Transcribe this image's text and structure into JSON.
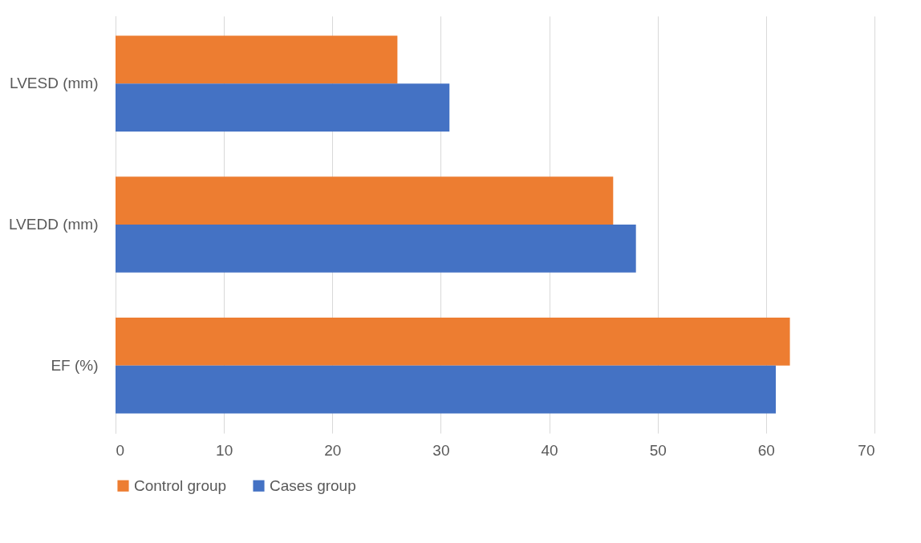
{
  "chart_data": {
    "type": "bar",
    "orientation": "horizontal",
    "categories": [
      "LVESD (mm)",
      "LVEDD (mm)",
      "EF (%)"
    ],
    "series": [
      {
        "name": "Control group",
        "color": "#ed7d31",
        "values": [
          26.0,
          45.9,
          62.2
        ]
      },
      {
        "name": "Cases group",
        "color": "#4472c4",
        "values": [
          30.8,
          48.0,
          60.9
        ]
      }
    ],
    "xlim": [
      0,
      70
    ],
    "xticks": [
      0,
      10,
      20,
      30,
      40,
      50,
      60,
      70
    ],
    "grid": "x",
    "legend": "bottom"
  }
}
